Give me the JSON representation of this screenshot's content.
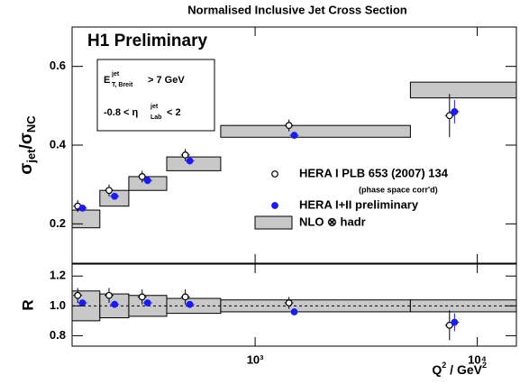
{
  "chart_data": [
    {
      "type": "errorbar",
      "title": "Normalised Inclusive Jet Cross Section",
      "annotation": "H1 Preliminary",
      "y_label": {
        "main": "σ",
        "sub1": "jet",
        "mid": "/σ",
        "sub2": "NC"
      },
      "cuts": [
        {
          "pre": "E",
          "sup": "jet",
          "sub": "T, Breit",
          "post": " > 7 GeV"
        },
        {
          "pre": "-0.8 < η",
          "sup": "jet",
          "sub": "Lab",
          "post": " < 2"
        }
      ],
      "log_x": true,
      "xlim": [
        150,
        15000
      ],
      "xticks": [
        1000,
        10000
      ],
      "ylim": [
        0.1,
        0.7
      ],
      "yticks": [
        0.2,
        0.4,
        0.6
      ],
      "legend_note": "(phase space corr'd)",
      "series": [
        {
          "name": "NLO ⊗ hadr",
          "kind": "band",
          "color": "#c8c8c8",
          "bins": [
            150,
            200,
            270,
            400,
            700,
            5000,
            15000
          ],
          "low": [
            0.19,
            0.245,
            0.285,
            0.335,
            0.42,
            0.52
          ],
          "high": [
            0.235,
            0.285,
            0.32,
            0.37,
            0.45,
            0.56
          ]
        },
        {
          "name": "HERA I PLB 653 (2007) 134",
          "kind": "points",
          "marker": "open",
          "color": "#000000",
          "x": [
            159,
            220,
            310,
            485,
            1420,
            7500
          ],
          "values": [
            0.245,
            0.285,
            0.32,
            0.375,
            0.45,
            0.475
          ],
          "errors": [
            0.015,
            0.015,
            0.015,
            0.015,
            0.015,
            0.055
          ]
        },
        {
          "name": "HERA I+II preliminary",
          "kind": "points",
          "marker": "filled",
          "color": "#1a1aff",
          "x": [
            167,
            233,
            328,
            508,
            1500,
            7900
          ],
          "values": [
            0.24,
            0.27,
            0.31,
            0.36,
            0.425,
            0.485
          ],
          "errors": [
            0.008,
            0.008,
            0.008,
            0.008,
            0.008,
            0.03
          ]
        }
      ]
    },
    {
      "type": "errorbar",
      "y_label": "R",
      "x_label": {
        "main": "Q",
        "sup1": "2",
        "mid": " / GeV",
        "sup2": "2"
      },
      "log_x": true,
      "xlim": [
        150,
        15000
      ],
      "xticks": [
        {
          "value": 1000,
          "label": "10³"
        },
        {
          "value": 10000,
          "label": "10⁴"
        }
      ],
      "ylim": [
        0.73,
        1.28
      ],
      "yticks": [
        0.8,
        {
          "value": 1,
          "label": "1.0"
        },
        1.2
      ],
      "refline": 1,
      "series": [
        {
          "kind": "band",
          "color": "#c8c8c8",
          "bins": [
            150,
            200,
            270,
            400,
            700,
            5000,
            15000
          ],
          "low": [
            0.9,
            0.92,
            0.93,
            0.95,
            0.96,
            0.96
          ],
          "high": [
            1.1,
            1.08,
            1.07,
            1.05,
            1.04,
            1.04
          ]
        },
        {
          "kind": "points",
          "marker": "open",
          "color": "#000000",
          "x": [
            159,
            220,
            310,
            485,
            1420,
            7500
          ],
          "values": [
            1.07,
            1.07,
            1.06,
            1.06,
            1.02,
            0.87
          ],
          "errors": [
            0.05,
            0.05,
            0.05,
            0.05,
            0.04,
            0.1
          ]
        },
        {
          "kind": "points",
          "marker": "filled",
          "color": "#1a1aff",
          "x": [
            167,
            233,
            328,
            508,
            1500,
            7900
          ],
          "values": [
            1.02,
            1.01,
            1.02,
            1.01,
            0.96,
            0.89
          ],
          "errors": [
            0.02,
            0.02,
            0.02,
            0.02,
            0.02,
            0.06
          ]
        }
      ]
    }
  ]
}
